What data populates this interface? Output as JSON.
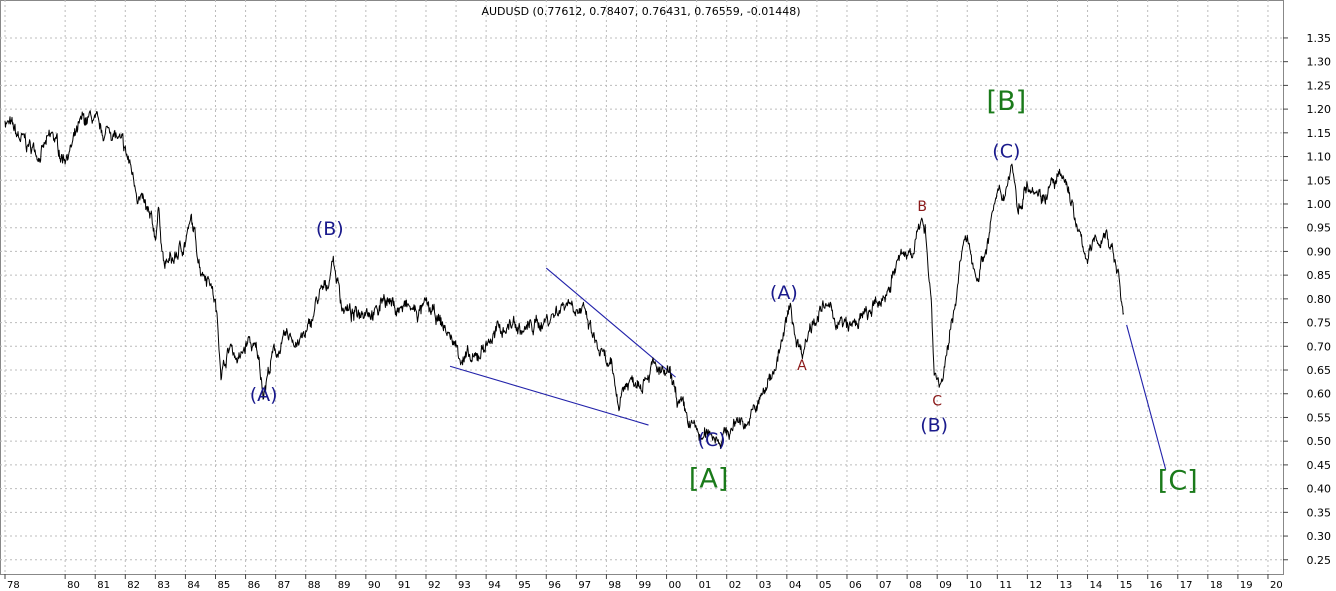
{
  "chart_data": {
    "type": "line",
    "title": "AUDUSD (0.77612, 0.78407, 0.76431, 0.76559, -0.01448)",
    "ylim": [
      0.22,
      1.43
    ],
    "xlim": [
      1978,
      2020.5
    ],
    "grid": true,
    "y_ticks": [
      "0.25",
      "0.30",
      "0.35",
      "0.40",
      "0.45",
      "0.50",
      "0.55",
      "0.60",
      "0.65",
      "0.70",
      "0.75",
      "0.80",
      "0.85",
      "0.90",
      "0.95",
      "1.00",
      "1.05",
      "1.10",
      "1.15",
      "1.20",
      "1.25",
      "1.30",
      "1.35"
    ],
    "x_ticks": [
      {
        "year": 1978,
        "label": "78"
      },
      {
        "year": 1980,
        "label": "80"
      },
      {
        "year": 1981,
        "label": "81"
      },
      {
        "year": 1982,
        "label": "82"
      },
      {
        "year": 1983,
        "label": "83"
      },
      {
        "year": 1984,
        "label": "84"
      },
      {
        "year": 1985,
        "label": "85"
      },
      {
        "year": 1986,
        "label": "86"
      },
      {
        "year": 1987,
        "label": "87"
      },
      {
        "year": 1988,
        "label": "88"
      },
      {
        "year": 1989,
        "label": "89"
      },
      {
        "year": 1990,
        "label": "90"
      },
      {
        "year": 1991,
        "label": "91"
      },
      {
        "year": 1992,
        "label": "92"
      },
      {
        "year": 1993,
        "label": "93"
      },
      {
        "year": 1994,
        "label": "94"
      },
      {
        "year": 1995,
        "label": "95"
      },
      {
        "year": 1996,
        "label": "96"
      },
      {
        "year": 1997,
        "label": "97"
      },
      {
        "year": 1998,
        "label": "98"
      },
      {
        "year": 1999,
        "label": "99"
      },
      {
        "year": 2000,
        "label": "00"
      },
      {
        "year": 2001,
        "label": "01"
      },
      {
        "year": 2002,
        "label": "02"
      },
      {
        "year": 2003,
        "label": "03"
      },
      {
        "year": 2004,
        "label": "04"
      },
      {
        "year": 2005,
        "label": "05"
      },
      {
        "year": 2006,
        "label": "06"
      },
      {
        "year": 2007,
        "label": "07"
      },
      {
        "year": 2008,
        "label": "08"
      },
      {
        "year": 2009,
        "label": "09"
      },
      {
        "year": 2010,
        "label": "10"
      },
      {
        "year": 2011,
        "label": "11"
      },
      {
        "year": 2012,
        "label": "12"
      },
      {
        "year": 2013,
        "label": "13"
      },
      {
        "year": 2014,
        "label": "14"
      },
      {
        "year": 2015,
        "label": "15"
      },
      {
        "year": 2016,
        "label": "16"
      },
      {
        "year": 2017,
        "label": "17"
      },
      {
        "year": 2018,
        "label": "18"
      },
      {
        "year": 2019,
        "label": "19"
      },
      {
        "year": 2020,
        "label": "20"
      }
    ],
    "series": [
      {
        "values": [
          [
            1978.0,
            1.18
          ],
          [
            1978.4,
            1.14
          ],
          [
            1978.8,
            1.12
          ],
          [
            1979.2,
            1.11
          ],
          [
            1979.6,
            1.14
          ],
          [
            1979.9,
            1.1
          ],
          [
            1980.2,
            1.12
          ],
          [
            1980.6,
            1.17
          ],
          [
            1980.9,
            1.18
          ],
          [
            1981.2,
            1.14
          ],
          [
            1981.5,
            1.16
          ],
          [
            1981.8,
            1.13
          ],
          [
            1982.1,
            1.09
          ],
          [
            1982.4,
            1.03
          ],
          [
            1982.7,
            0.98
          ],
          [
            1983.0,
            0.93
          ],
          [
            1983.1,
            0.99
          ],
          [
            1983.3,
            0.87
          ],
          [
            1983.6,
            0.88
          ],
          [
            1983.9,
            0.91
          ],
          [
            1984.2,
            0.96
          ],
          [
            1984.5,
            0.87
          ],
          [
            1984.8,
            0.85
          ],
          [
            1985.0,
            0.79
          ],
          [
            1985.2,
            0.65
          ],
          [
            1985.5,
            0.7
          ],
          [
            1985.8,
            0.67
          ],
          [
            1986.1,
            0.71
          ],
          [
            1986.4,
            0.68
          ],
          [
            1986.6,
            0.61
          ],
          [
            1986.9,
            0.68
          ],
          [
            1987.2,
            0.7
          ],
          [
            1987.5,
            0.72
          ],
          [
            1987.8,
            0.71
          ],
          [
            1988.1,
            0.73
          ],
          [
            1988.4,
            0.8
          ],
          [
            1988.7,
            0.82
          ],
          [
            1988.9,
            0.89
          ],
          [
            1989.2,
            0.79
          ],
          [
            1989.6,
            0.76
          ],
          [
            1990.0,
            0.79
          ],
          [
            1990.4,
            0.77
          ],
          [
            1990.6,
            0.81
          ],
          [
            1991.0,
            0.78
          ],
          [
            1991.4,
            0.78
          ],
          [
            1991.7,
            0.77
          ],
          [
            1992.0,
            0.78
          ],
          [
            1992.3,
            0.76
          ],
          [
            1992.6,
            0.74
          ],
          [
            1992.9,
            0.71
          ],
          [
            1993.2,
            0.68
          ],
          [
            1993.6,
            0.66
          ],
          [
            1993.9,
            0.7
          ],
          [
            1994.2,
            0.72
          ],
          [
            1994.6,
            0.74
          ],
          [
            1994.9,
            0.75
          ],
          [
            1995.2,
            0.73
          ],
          [
            1995.5,
            0.74
          ],
          [
            1995.8,
            0.75
          ],
          [
            1996.1,
            0.76
          ],
          [
            1996.4,
            0.78
          ],
          [
            1996.7,
            0.8
          ],
          [
            1997.0,
            0.79
          ],
          [
            1997.3,
            0.76
          ],
          [
            1997.6,
            0.71
          ],
          [
            1997.9,
            0.67
          ],
          [
            1998.2,
            0.64
          ],
          [
            1998.4,
            0.58
          ],
          [
            1998.6,
            0.62
          ],
          [
            1998.9,
            0.63
          ],
          [
            1999.2,
            0.64
          ],
          [
            1999.5,
            0.66
          ],
          [
            1999.8,
            0.64
          ],
          [
            2000.1,
            0.63
          ],
          [
            2000.4,
            0.58
          ],
          [
            2000.7,
            0.54
          ],
          [
            2001.0,
            0.52
          ],
          [
            2001.2,
            0.5
          ],
          [
            2001.5,
            0.52
          ],
          [
            2001.8,
            0.51
          ],
          [
            2002.1,
            0.52
          ],
          [
            2002.4,
            0.55
          ],
          [
            2002.7,
            0.54
          ],
          [
            2003.0,
            0.57
          ],
          [
            2003.3,
            0.61
          ],
          [
            2003.6,
            0.66
          ],
          [
            2003.9,
            0.72
          ],
          [
            2004.1,
            0.78
          ],
          [
            2004.3,
            0.72
          ],
          [
            2004.5,
            0.69
          ],
          [
            2004.8,
            0.75
          ],
          [
            2005.0,
            0.77
          ],
          [
            2005.3,
            0.78
          ],
          [
            2005.6,
            0.76
          ],
          [
            2005.9,
            0.74
          ],
          [
            2006.2,
            0.74
          ],
          [
            2006.5,
            0.76
          ],
          [
            2006.8,
            0.77
          ],
          [
            2007.1,
            0.79
          ],
          [
            2007.4,
            0.83
          ],
          [
            2007.7,
            0.88
          ],
          [
            2008.0,
            0.89
          ],
          [
            2008.3,
            0.93
          ],
          [
            2008.6,
            0.96
          ],
          [
            2008.8,
            0.8
          ],
          [
            2008.9,
            0.65
          ],
          [
            2009.1,
            0.62
          ],
          [
            2009.3,
            0.66
          ],
          [
            2009.6,
            0.8
          ],
          [
            2009.9,
            0.92
          ],
          [
            2010.1,
            0.9
          ],
          [
            2010.3,
            0.85
          ],
          [
            2010.6,
            0.9
          ],
          [
            2010.9,
            1.0
          ],
          [
            2011.2,
            1.02
          ],
          [
            2011.5,
            1.09
          ],
          [
            2011.7,
            0.98
          ],
          [
            2011.9,
            1.04
          ],
          [
            2012.2,
            1.05
          ],
          [
            2012.5,
            1.02
          ],
          [
            2012.8,
            1.04
          ],
          [
            2013.1,
            1.05
          ],
          [
            2013.4,
            1.03
          ],
          [
            2013.7,
            0.93
          ],
          [
            2014.0,
            0.89
          ],
          [
            2014.3,
            0.92
          ],
          [
            2014.6,
            0.94
          ],
          [
            2014.8,
            0.91
          ],
          [
            2015.0,
            0.86
          ],
          [
            2015.2,
            0.77
          ]
        ]
      }
    ],
    "trendlines": [
      {
        "from": [
          1996.0,
          0.865
        ],
        "to": [
          2000.3,
          0.635
        ]
      },
      {
        "from": [
          1992.8,
          0.658
        ],
        "to": [
          1999.4,
          0.534
        ]
      },
      {
        "from": [
          2015.3,
          0.745
        ],
        "to": [
          2016.6,
          0.44
        ]
      }
    ],
    "annotations": [
      {
        "text": "(A)",
        "x": 1986.6,
        "y": 0.585,
        "style": "blue"
      },
      {
        "text": "(B)",
        "x": 1988.8,
        "y": 0.935,
        "style": "blue"
      },
      {
        "text": "(C)",
        "x": 2001.5,
        "y": 0.49,
        "style": "blue"
      },
      {
        "text": "[A]",
        "x": 2001.4,
        "y": 0.402,
        "style": "green"
      },
      {
        "text": "(A)",
        "x": 2003.9,
        "y": 0.8,
        "style": "blue"
      },
      {
        "text": "A",
        "x": 2004.5,
        "y": 0.65,
        "style": "red"
      },
      {
        "text": "B",
        "x": 2008.5,
        "y": 0.985,
        "style": "red"
      },
      {
        "text": "C",
        "x": 2009.0,
        "y": 0.575,
        "style": "red"
      },
      {
        "text": "(B)",
        "x": 2008.9,
        "y": 0.52,
        "style": "blue"
      },
      {
        "text": "(C)",
        "x": 2011.3,
        "y": 1.098,
        "style": "blue"
      },
      {
        "text": "[B]",
        "x": 2011.3,
        "y": 1.198,
        "style": "green"
      },
      {
        "text": "[C]",
        "x": 2017.0,
        "y": 0.398,
        "style": "green"
      }
    ]
  }
}
